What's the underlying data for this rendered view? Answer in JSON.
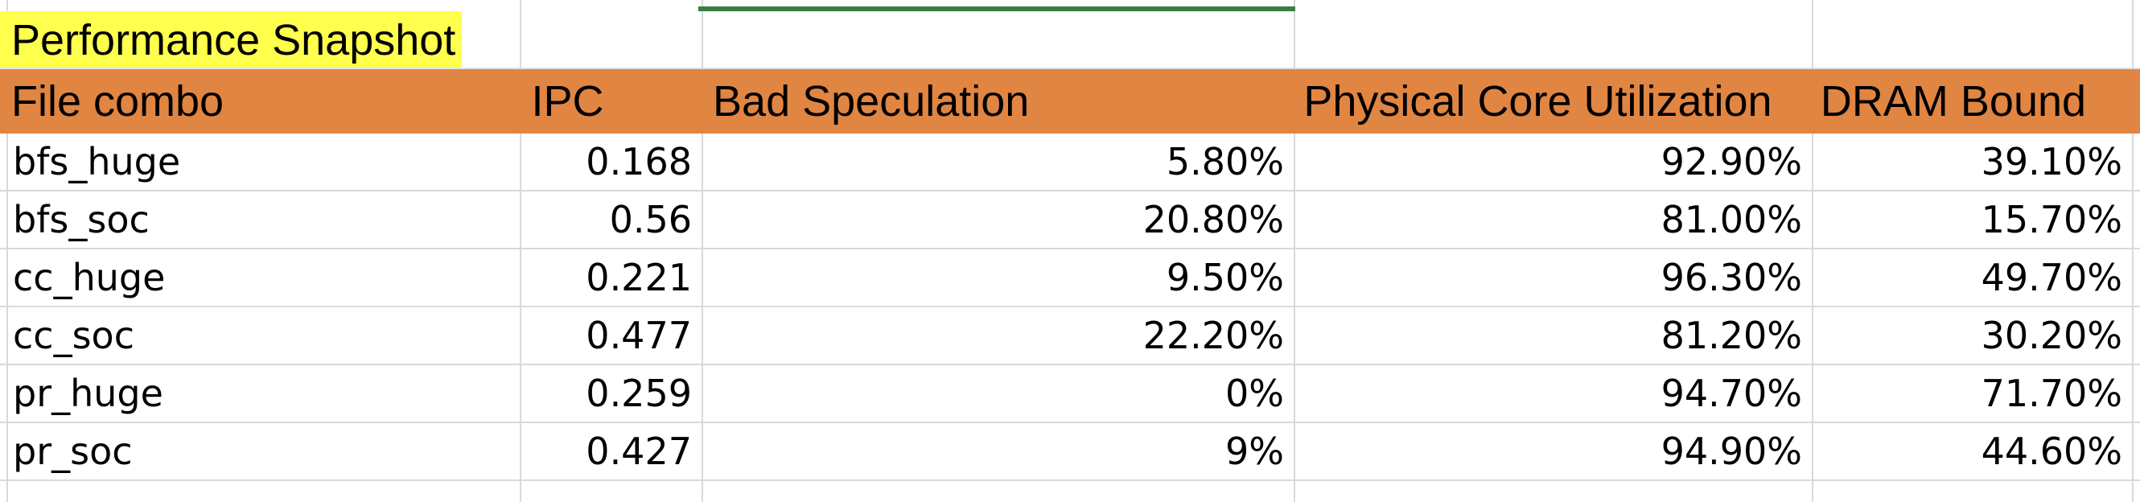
{
  "sheet": {
    "title": "Performance Snapshot",
    "colors": {
      "title_highlight": "#ffff4d",
      "header_fill": "#e18542",
      "selected_column_marker": "#3a7d44",
      "grid_line": "#d9d9d9"
    },
    "columns": [
      "File combo",
      "IPC",
      "Bad Speculation",
      "Physical Core Utilization",
      "DRAM Bound"
    ],
    "rows": [
      [
        "bfs_huge",
        "0.168",
        "5.80%",
        "92.90%",
        "39.10%"
      ],
      [
        "bfs_soc",
        "0.56",
        "20.80%",
        "81.00%",
        "15.70%"
      ],
      [
        "cc_huge",
        "0.221",
        "9.50%",
        "96.30%",
        "49.70%"
      ],
      [
        "cc_soc",
        "0.477",
        "22.20%",
        "81.20%",
        "30.20%"
      ],
      [
        "pr_huge",
        "0.259",
        "0%",
        "94.70%",
        "71.70%"
      ],
      [
        "pr_soc",
        "0.427",
        "9%",
        "94.90%",
        "44.60%"
      ]
    ]
  }
}
